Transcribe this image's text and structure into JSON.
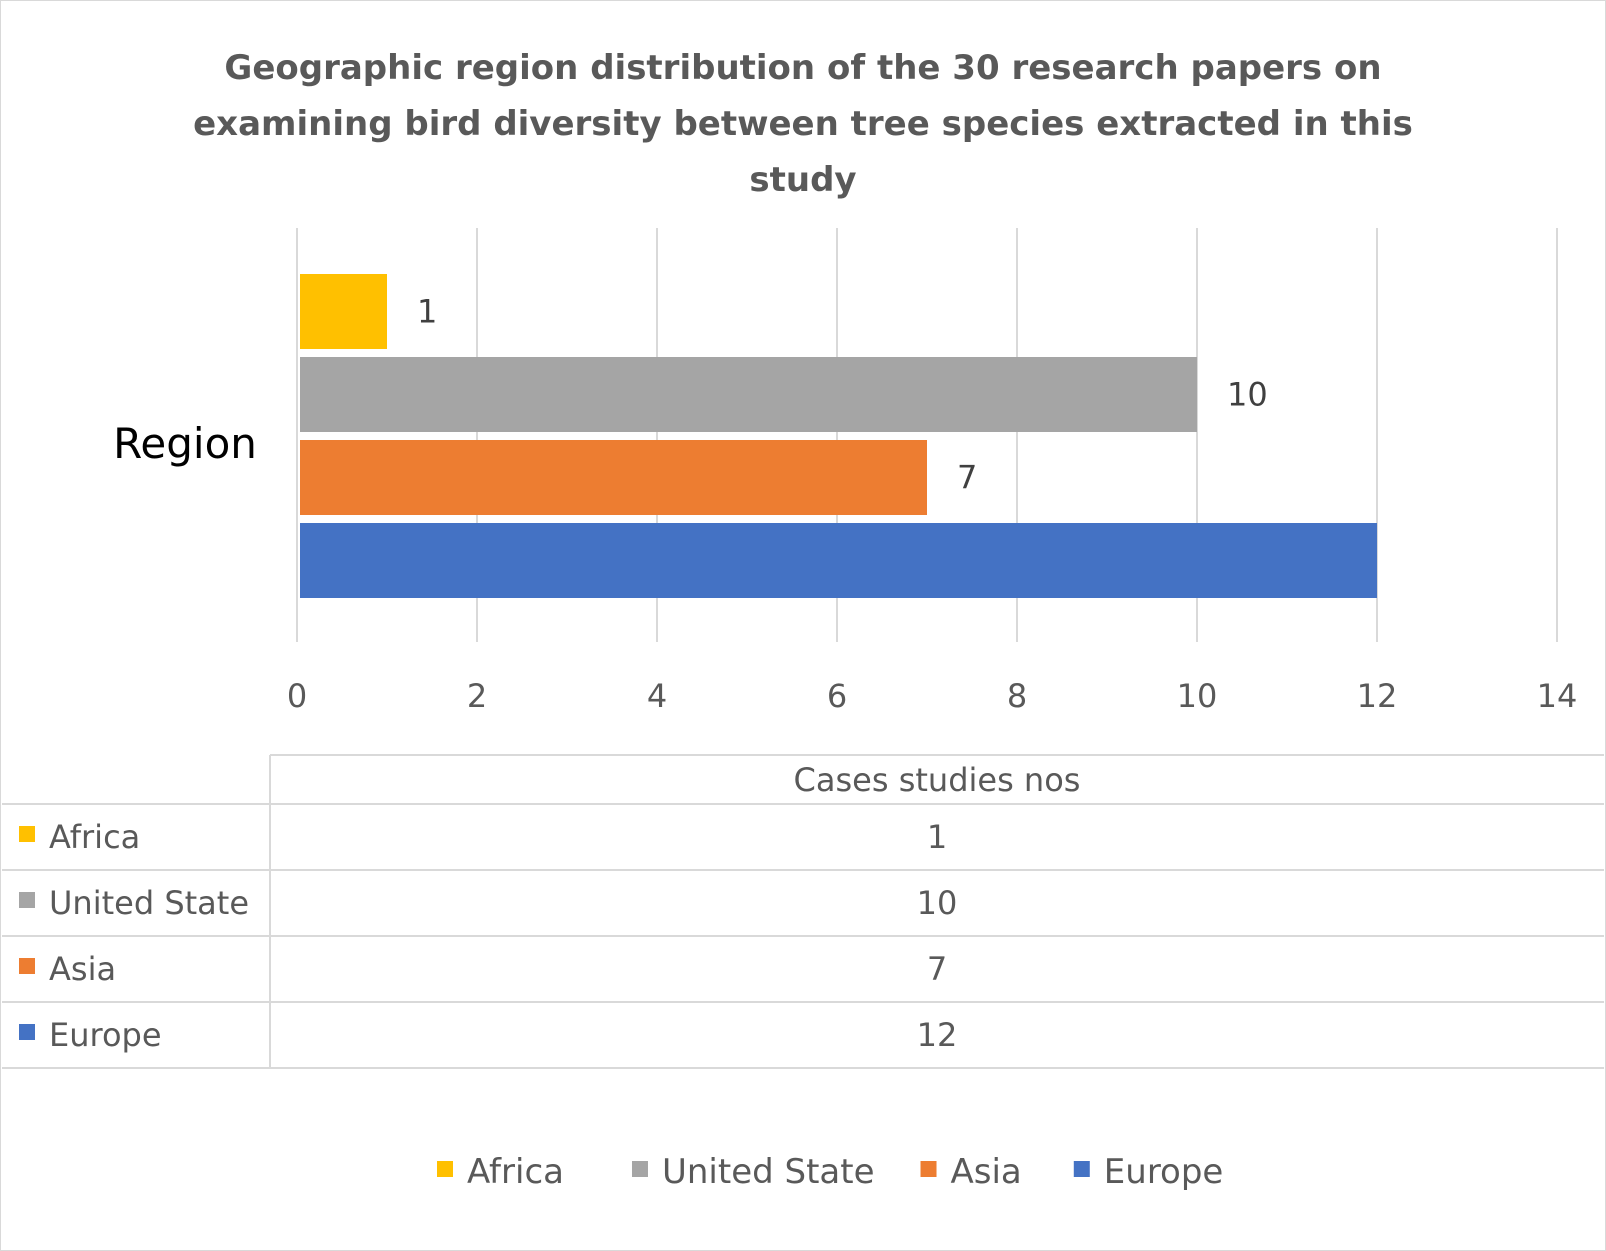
{
  "chart_data": {
    "type": "bar",
    "orientation": "horizontal",
    "title": "Geographic region distribution of the 30 research papers on examining bird diversity between tree species extracted in this study",
    "category": "Region",
    "xlim": [
      0,
      14
    ],
    "x_ticks": [
      "0",
      "2",
      "4",
      "6",
      "8",
      "10",
      "12",
      "14"
    ],
    "grid": true,
    "series": [
      {
        "name": "Africa",
        "value": 1,
        "color": "#FFC000",
        "label": "1"
      },
      {
        "name": "United State",
        "value": 10,
        "color": "#A5A5A5",
        "label": "10"
      },
      {
        "name": "Asia",
        "value": 7,
        "color": "#ED7D31",
        "label": "7"
      },
      {
        "name": "Europe",
        "value": 12,
        "color": "#4472C4",
        "label": ""
      }
    ],
    "data_table": {
      "header": "Cases studies nos",
      "rows": [
        {
          "name": "Africa",
          "value": "1"
        },
        {
          "name": "United State",
          "value": "10"
        },
        {
          "name": "Asia",
          "value": "7"
        },
        {
          "name": "Europe",
          "value": "12"
        }
      ]
    },
    "legend": {
      "position": "bottom",
      "entries": [
        "Africa",
        "United State",
        "Asia",
        "Europe"
      ]
    }
  }
}
